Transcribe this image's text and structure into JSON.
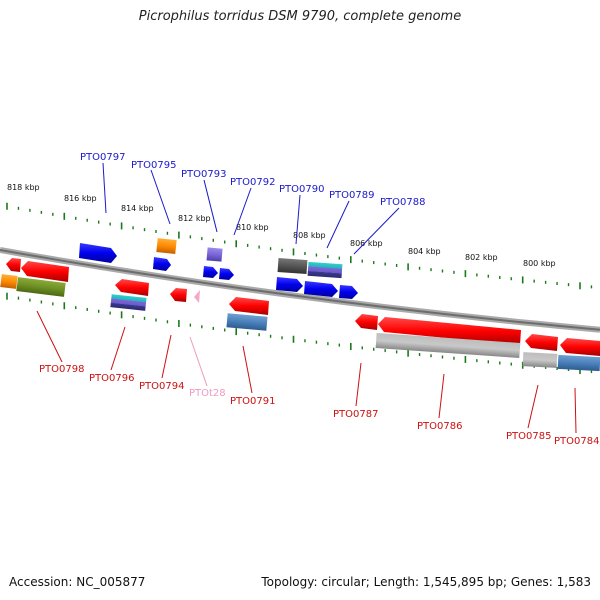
{
  "title": "Picrophilus torridus DSM 9790, complete genome",
  "footer": {
    "accession": "Accession: NC_005877",
    "summary": "Topology: circular; Length: 1,545,895 bp; Genes: 1,583"
  },
  "colors": {
    "forward_label": "#1a1acc",
    "reverse_label": "#cc1111",
    "trna_label": "#f09ac0",
    "tick": "#1a7a1a",
    "backbone": "#8a8a8a"
  },
  "scale_labels": [
    "818 kbp",
    "816 kbp",
    "814 kbp",
    "812 kbp",
    "810 kbp",
    "808 kbp",
    "806 kbp",
    "804 kbp",
    "802 kbp",
    "800 kbp"
  ],
  "forward_genes": [
    "PTO0797",
    "PTO0795",
    "PTO0793",
    "PTO0792",
    "PTO0790",
    "PTO0789",
    "PTO0788"
  ],
  "reverse_genes": [
    "PTO0798",
    "PTO0796",
    "PTO0794",
    "PTOt28",
    "PTO0791",
    "PTO0787",
    "PTO0786",
    "PTO0785",
    "PTO0784"
  ]
}
